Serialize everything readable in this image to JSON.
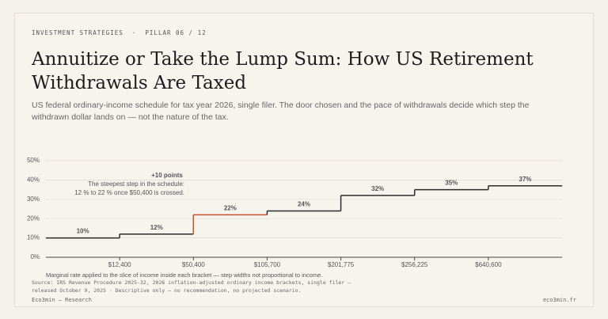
{
  "kicker": [
    "INVESTMENT STRATEGIES",
    "PILLAR 06 / 12"
  ],
  "chart_data": {
    "type": "step",
    "title": "Annuitize or Take the Lump Sum: How US Retirement Withdrawals Are Taxed",
    "subtitle": "US federal ordinary-income schedule for tax year 2026, single filer. The door chosen and the pace of withdrawals decide which step the withdrawn dollar lands on — not the nature of the tax.",
    "values": [
      10,
      12,
      22,
      24,
      32,
      35,
      37
    ],
    "value_labels": [
      "10%",
      "12%",
      "22%",
      "24%",
      "32%",
      "35%",
      "37%"
    ],
    "thresholds": [
      "$12,400",
      "$50,400",
      "$105,700",
      "$201,775",
      "$256,225",
      "$640,600"
    ],
    "ylim": [
      0,
      50
    ],
    "yticks": [
      {
        "value": 0,
        "label": "0%"
      },
      {
        "value": 10,
        "label": "10%"
      },
      {
        "value": 20,
        "label": "20%"
      },
      {
        "value": 30,
        "label": "30%"
      },
      {
        "value": 40,
        "label": "40%"
      },
      {
        "value": 50,
        "label": "50%"
      }
    ],
    "grid": true,
    "color": "#2b2b2b",
    "highlight": 2,
    "highlight_color": "#c2522d",
    "annotation": {
      "title": "+10 points",
      "lines": [
        "The steepest step in the schedule:",
        "12 % to 22 % once $50,400 is crossed."
      ]
    },
    "footnote": "Marginal rate applied to the slice of income inside each bracket — step widths not proportional to income.",
    "source": [
      "Source: IRS Revenue Procedure 2025-32, 2026 inflation-adjusted ordinary income brackets, single filer —",
      "released October 9, 2025 · Descriptive only — no recommendation, no projected scenario."
    ]
  },
  "footer": {
    "left": "Eco3min — Research",
    "right": "eco3min.fr"
  }
}
